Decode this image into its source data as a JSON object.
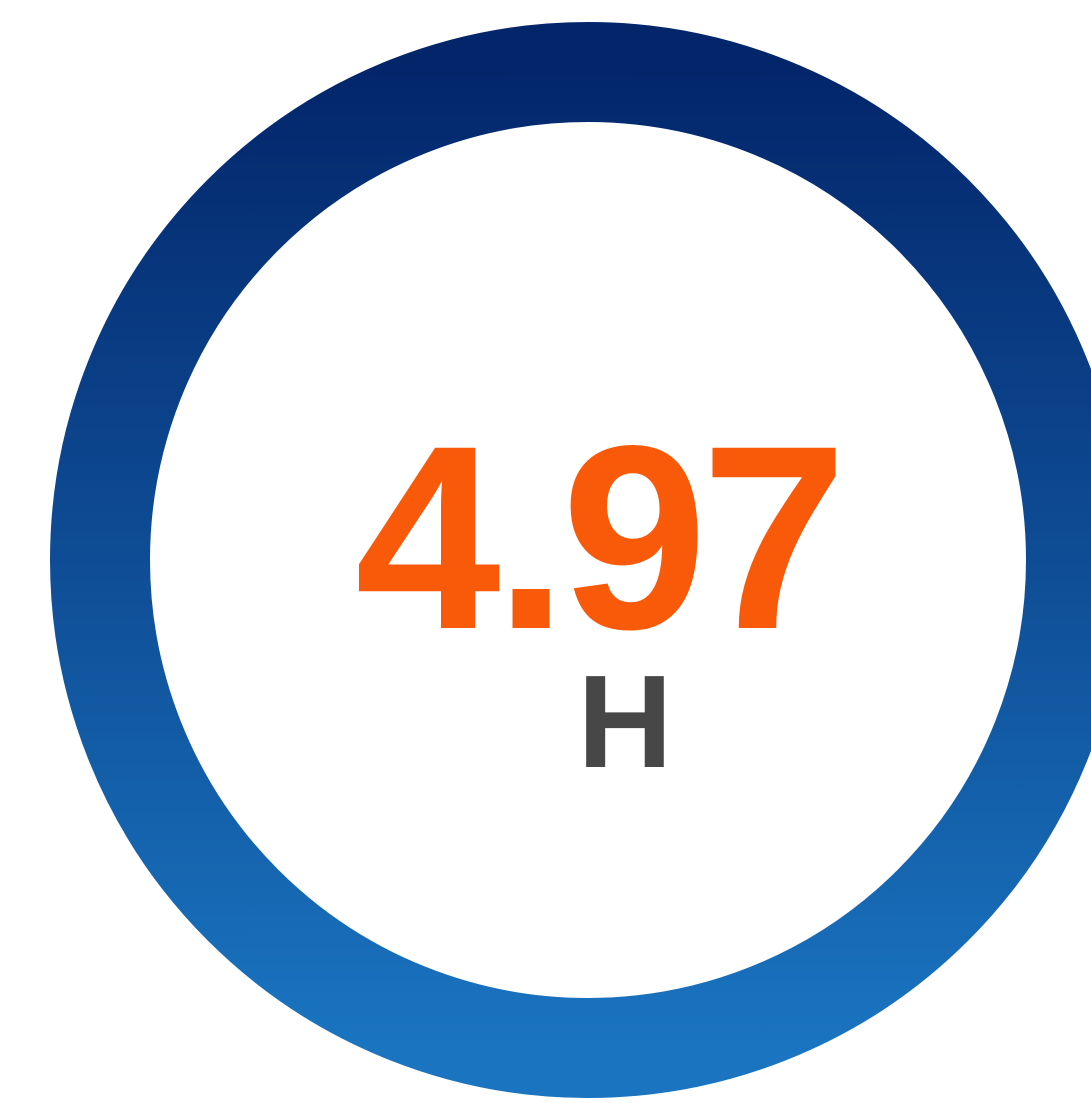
{
  "metric": {
    "value": 4.97,
    "unit": "H"
  }
}
